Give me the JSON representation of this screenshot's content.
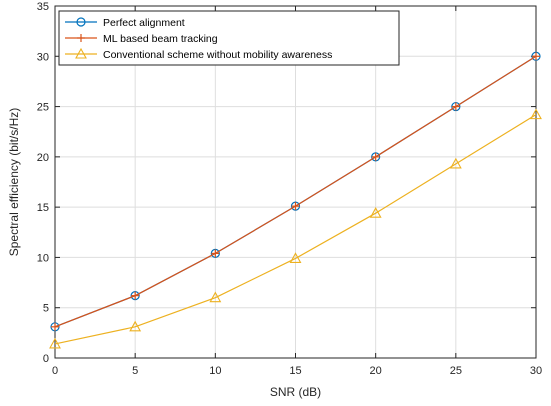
{
  "chart_data": {
    "type": "line",
    "title": "",
    "xlabel": "SNR (dB)",
    "ylabel": "Spectral efficiency (bit/s/Hz)",
    "xlim": [
      0,
      30
    ],
    "ylim": [
      0,
      35
    ],
    "xticks": [
      0,
      5,
      10,
      15,
      20,
      25,
      30
    ],
    "yticks": [
      0,
      5,
      10,
      15,
      20,
      25,
      30,
      35
    ],
    "grid": true,
    "legend_position": "top-left",
    "x": [
      0,
      5,
      10,
      15,
      20,
      25,
      30
    ],
    "series": [
      {
        "name": "Perfect alignment",
        "values": [
          3.1,
          6.2,
          10.4,
          15.1,
          20.0,
          25.0,
          30.0
        ],
        "color": "#0072BD",
        "marker": "circle"
      },
      {
        "name": "ML based beam tracking",
        "values": [
          3.1,
          6.2,
          10.4,
          15.1,
          20.0,
          25.0,
          30.0
        ],
        "color": "#D95319",
        "marker": "plus"
      },
      {
        "name": "Conventional scheme without mobility awareness",
        "values": [
          1.4,
          3.1,
          6.0,
          9.9,
          14.4,
          19.3,
          24.2
        ],
        "color": "#EDB120",
        "marker": "triangle"
      }
    ]
  }
}
